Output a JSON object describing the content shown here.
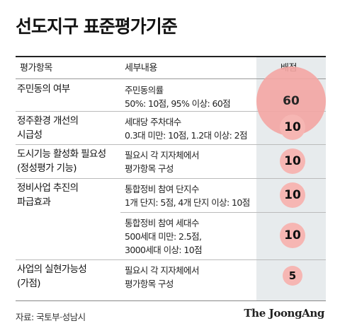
{
  "title": "선도지구 표준평가기준",
  "table": {
    "headers": {
      "item": "평가항목",
      "detail": "세부내용",
      "score": "배점"
    },
    "rows": [
      {
        "item": [
          "주민동의 여부"
        ],
        "detail": [
          "주민동의률",
          "50%: 10점, 95% 이상: 60점"
        ],
        "score": "60"
      },
      {
        "item": [
          "정주환경 개선의",
          "시급성"
        ],
        "detail": [
          "세대당 주차대수",
          "0.3대 미만: 10점, 1.2대 이상: 2점"
        ],
        "score": "10"
      },
      {
        "item": [
          "도시기능 활성화 필요성",
          "(정성평가 기능)"
        ],
        "detail": [
          "필요시 각 지자체에서",
          "평가항목 구성"
        ],
        "score": "10"
      },
      {
        "item": [
          "정비사업 추진의",
          "파급효과"
        ],
        "detail": [
          "통합정비 참여 단지수",
          "1개 단지: 5점, 4개 단지 이상: 10점"
        ],
        "score": "10"
      },
      {
        "item": [],
        "detail": [
          "통합정비 참여 세대수",
          "500세대 미만: 2.5점,",
          "3000세대 이상: 10점"
        ],
        "score": "10"
      },
      {
        "item": [
          "사업의 실현가능성",
          "(가점)"
        ],
        "detail": [
          "필요시 각 지자체에서",
          "평가항목 구성"
        ],
        "score": "5"
      }
    ]
  },
  "source": "자료: 국토부·성남시",
  "brand": "The JoongAng"
}
